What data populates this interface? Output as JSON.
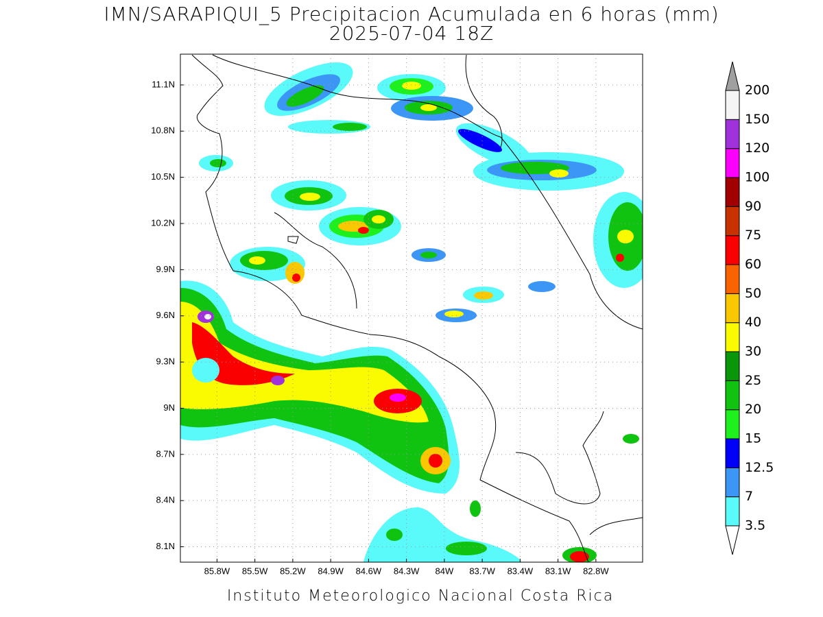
{
  "header": {
    "title": "IMN/SARAPIQUI_5 Precipitacion Acumulada en 6 horas (mm)",
    "subtitle": "2025-07-04 18Z"
  },
  "map": {
    "lat_range": [
      8.0,
      11.3
    ],
    "lon_range": [
      -86.09,
      -82.43
    ],
    "lat_ticks": [
      {
        "value": 11.1,
        "label": "11.1N"
      },
      {
        "value": 10.8,
        "label": "10.8N"
      },
      {
        "value": 10.5,
        "label": "10.5N"
      },
      {
        "value": 10.2,
        "label": "10.2N"
      },
      {
        "value": 9.9,
        "label": "9.9N"
      },
      {
        "value": 9.6,
        "label": "9.6N"
      },
      {
        "value": 9.3,
        "label": "9.3N"
      },
      {
        "value": 9,
        "label": "9N"
      },
      {
        "value": 8.7,
        "label": "8.7N"
      },
      {
        "value": 8.4,
        "label": "8.4N"
      },
      {
        "value": 8.1,
        "label": "8.1N"
      }
    ],
    "lon_ticks": [
      {
        "value": -85.8,
        "label": "85.8W"
      },
      {
        "value": -85.5,
        "label": "85.5W"
      },
      {
        "value": -85.2,
        "label": "85.2W"
      },
      {
        "value": -84.9,
        "label": "84.9W"
      },
      {
        "value": -84.6,
        "label": "84.6W"
      },
      {
        "value": -84.3,
        "label": "84.3W"
      },
      {
        "value": -84,
        "label": "84W"
      },
      {
        "value": -83.7,
        "label": "83.7W"
      },
      {
        "value": -83.4,
        "label": "83.4W"
      },
      {
        "value": -83.1,
        "label": "83.1W"
      },
      {
        "value": -82.8,
        "label": "82.8W"
      }
    ],
    "grid": true
  },
  "colorbar": {
    "levels": [
      3.5,
      7,
      12.5,
      15,
      20,
      25,
      30,
      40,
      50,
      60,
      75,
      90,
      100,
      120,
      150,
      200
    ],
    "colors": [
      "#5afafa",
      "#3c96f5",
      "#0000fa",
      "#1ef01e",
      "#10c310",
      "#0a960a",
      "#fafa00",
      "#fac800",
      "#fa6400",
      "#fa0000",
      "#c83200",
      "#a00000",
      "#fa00fa",
      "#a032dc",
      "#f5f5f5"
    ],
    "below_color": "#ffffff",
    "above_color": "#a0a0a0"
  },
  "footer": {
    "text": "Instituto Meteorologico Nacional Costa Rica"
  }
}
